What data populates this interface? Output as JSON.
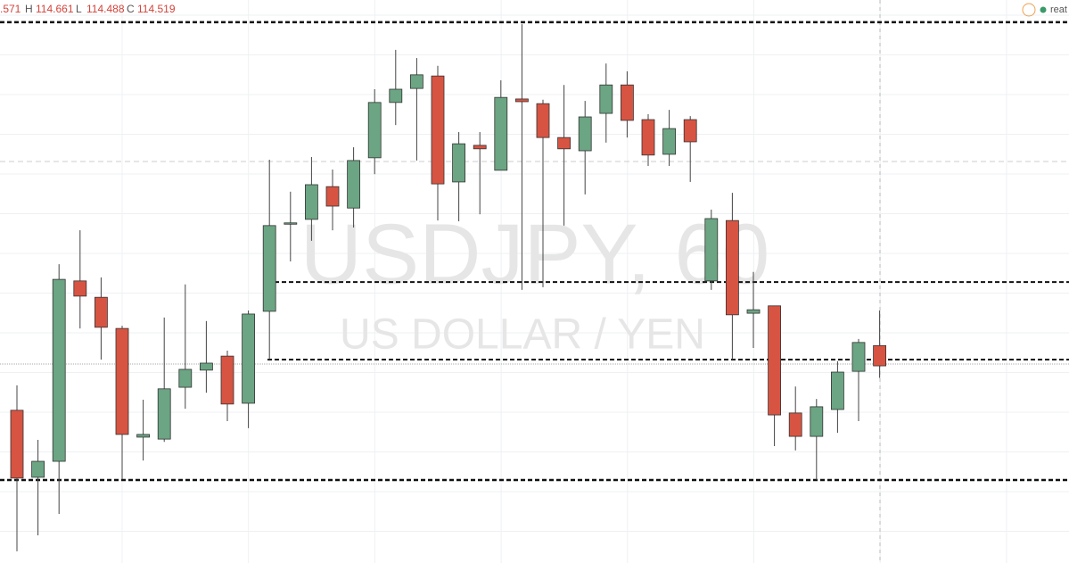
{
  "chart_data": {
    "type": "candlestick",
    "title": "USDJPY, 60",
    "subtitle": "US DOLLAR / YEN",
    "header": {
      "open": ".571",
      "high_label": "H",
      "high": "114.661",
      "low_label": "L",
      "low": "114.488",
      "close_label": "C",
      "close": "114.519"
    },
    "status": "reat",
    "up_color": "#6ba583",
    "down_color": "#d75442",
    "ylim": [
      114.013,
      115.458
    ],
    "open": [
      114.405,
      114.233,
      114.274,
      114.737,
      114.695,
      114.615,
      114.336,
      114.331,
      114.464,
      114.508,
      114.544,
      114.423,
      114.659,
      114.883,
      114.895,
      114.979,
      114.924,
      115.053,
      115.195,
      115.231,
      115.263,
      114.991,
      115.085,
      115.021,
      115.204,
      115.192,
      115.105,
      115.071,
      115.167,
      115.24,
      115.151,
      115.062,
      115.151,
      114.737,
      114.892,
      114.654,
      114.673,
      114.398,
      114.338,
      114.407,
      114.505,
      114.571
    ],
    "close": [
      114.231,
      114.274,
      114.741,
      114.698,
      114.618,
      114.343,
      114.343,
      114.46,
      114.51,
      114.526,
      114.421,
      114.652,
      114.879,
      114.886,
      114.984,
      114.929,
      115.046,
      115.195,
      115.229,
      115.266,
      114.986,
      115.089,
      115.076,
      115.208,
      115.197,
      115.105,
      115.076,
      115.158,
      115.24,
      115.149,
      115.06,
      115.128,
      115.094,
      114.897,
      114.65,
      114.663,
      114.393,
      114.338,
      114.414,
      114.503,
      114.579,
      114.519
    ],
    "high": [
      114.469,
      114.329,
      114.78,
      114.867,
      114.746,
      114.622,
      114.432,
      114.643,
      114.728,
      114.634,
      114.558,
      114.661,
      115.048,
      114.966,
      115.055,
      115.023,
      115.08,
      115.229,
      115.33,
      115.309,
      115.289,
      115.119,
      115.119,
      115.252,
      115.396,
      115.202,
      115.24,
      115.199,
      115.295,
      115.275,
      115.165,
      115.176,
      115.16,
      114.92,
      114.963,
      114.76,
      114.673,
      114.466,
      114.434,
      114.531,
      114.588,
      114.661
    ],
    "low": [
      114.043,
      114.084,
      114.139,
      114.615,
      114.535,
      114.228,
      114.276,
      114.324,
      114.409,
      114.45,
      114.377,
      114.359,
      114.535,
      114.787,
      114.84,
      114.867,
      114.874,
      115.011,
      115.137,
      115.046,
      114.892,
      114.89,
      114.908,
      115.021,
      114.714,
      114.721,
      114.879,
      114.959,
      115.092,
      115.105,
      115.032,
      115.032,
      114.991,
      114.714,
      114.535,
      114.565,
      114.313,
      114.302,
      114.226,
      114.347,
      114.377,
      114.488
    ],
    "levels": [
      115.401,
      114.734,
      114.535,
      114.226
    ]
  }
}
